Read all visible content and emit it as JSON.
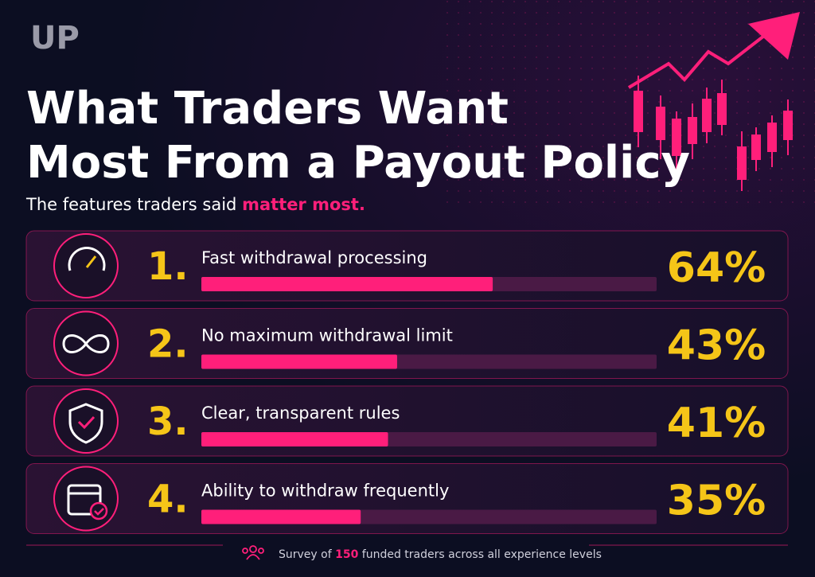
{
  "chart_data": {
    "type": "bar",
    "logo": "UP",
    "title": [
      "What Traders Want",
      "Most From a Payout Policy"
    ],
    "subtitle": [
      "The features traders said ",
      "matter most."
    ],
    "ranks": [
      "1.",
      "2.",
      "3.",
      "4."
    ],
    "categories": [
      "Fast withdrawal processing",
      "No maximum withdrawal limit",
      "Clear, transparent rules",
      "Ability to withdraw frequently"
    ],
    "values": [
      64,
      43,
      41,
      35
    ],
    "value_labels": [
      "64%",
      "43%",
      "41%",
      "35%"
    ],
    "xlim": [
      0,
      100
    ],
    "color": "#ff1f7a",
    "footer": [
      "Survey of ",
      "150",
      " funded traders across all experience levels"
    ]
  }
}
